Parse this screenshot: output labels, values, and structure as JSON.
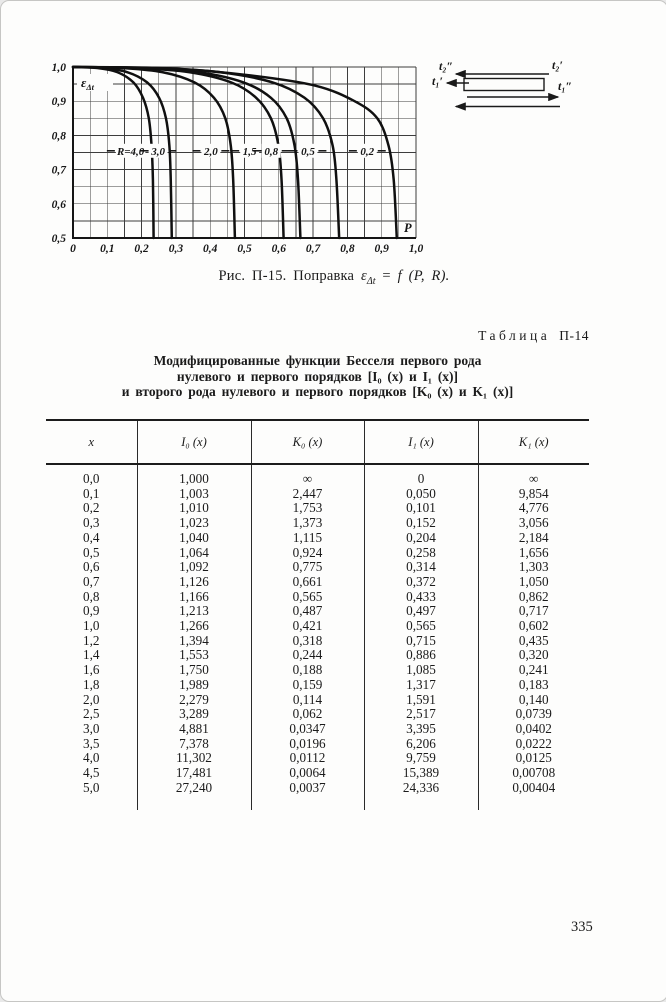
{
  "page": {
    "number": "335"
  },
  "figure": {
    "caption": {
      "prefix": "Рис. П-15. Поправка ",
      "eps": "ε",
      "eps_sub": "Δt",
      "eq": " = ",
      "func": "f",
      "args": " (P, R)."
    },
    "inset_labels": {
      "t2_out": "t₂″",
      "t2_in": "t₂′",
      "t1_in": "t₁′",
      "t1_out": "t₁″"
    },
    "chart_data": {
      "type": "line",
      "title": "",
      "xlabel": "P",
      "ylabel_base": "ε",
      "ylabel_sub": "Δt",
      "xlim": [
        0,
        1.0
      ],
      "ylim": [
        0.5,
        1.0
      ],
      "grid": true,
      "grid_step": 0.05,
      "x_tick_values": [
        0,
        0.1,
        0.2,
        0.3,
        0.4,
        0.5,
        0.6,
        0.7,
        0.8,
        0.9,
        1.0
      ],
      "x_tick_labels": [
        "0",
        "0,1",
        "0,2",
        "0,3",
        "0,4",
        "0,5",
        "0,6",
        "0,7",
        "0,8",
        "0,9",
        "1,0"
      ],
      "y_tick_values": [
        0.5,
        0.6,
        0.7,
        0.8,
        0.9,
        1.0
      ],
      "y_tick_labels": [
        "0,5",
        "0,6",
        "0,7",
        "0,8",
        "0,9",
        "1,0"
      ],
      "label_eps": 0.755,
      "series": [
        {
          "name": "R=4,0",
          "label_p": 0.168,
          "points": [
            [
              0,
              1.0
            ],
            [
              0.071,
              0.997
            ],
            [
              0.129,
              0.985
            ],
            [
              0.176,
              0.955
            ],
            [
              0.204,
              0.91
            ],
            [
              0.221,
              0.85
            ],
            [
              0.229,
              0.77
            ],
            [
              0.233,
              0.67
            ],
            [
              0.235,
              0.5
            ]
          ]
        },
        {
          "name": "3,0",
          "label_p": 0.248,
          "points": [
            [
              0,
              1.0
            ],
            [
              0.086,
              0.997
            ],
            [
              0.158,
              0.985
            ],
            [
              0.216,
              0.955
            ],
            [
              0.251,
              0.91
            ],
            [
              0.271,
              0.85
            ],
            [
              0.281,
              0.77
            ],
            [
              0.285,
              0.67
            ],
            [
              0.288,
              0.5
            ]
          ]
        },
        {
          "name": "2,0",
          "label_p": 0.402,
          "points": [
            [
              0,
              1.0
            ],
            [
              0.142,
              0.997
            ],
            [
              0.26,
              0.985
            ],
            [
              0.354,
              0.955
            ],
            [
              0.411,
              0.91
            ],
            [
              0.444,
              0.85
            ],
            [
              0.46,
              0.77
            ],
            [
              0.467,
              0.67
            ],
            [
              0.472,
              0.5
            ]
          ]
        },
        {
          "name": "1,5",
          "label_p": 0.515,
          "points": [
            [
              0,
              1.0
            ],
            [
              0.184,
              0.997
            ],
            [
              0.338,
              0.985
            ],
            [
              0.461,
              0.955
            ],
            [
              0.534,
              0.91
            ],
            [
              0.577,
              0.85
            ],
            [
              0.599,
              0.77
            ],
            [
              0.608,
              0.67
            ],
            [
              0.614,
              0.5
            ]
          ]
        },
        {
          "name": "0,8",
          "label_p": 0.578,
          "points": [
            [
              0,
              1.0
            ],
            [
              0.199,
              0.997
            ],
            [
              0.365,
              0.985
            ],
            [
              0.497,
              0.955
            ],
            [
              0.577,
              0.91
            ],
            [
              0.623,
              0.85
            ],
            [
              0.646,
              0.77
            ],
            [
              0.656,
              0.67
            ],
            [
              0.663,
              0.5
            ]
          ]
        },
        {
          "name": "0,5",
          "label_p": 0.685,
          "points": [
            [
              0,
              1.0
            ],
            [
              0.233,
              0.997
            ],
            [
              0.427,
              0.985
            ],
            [
              0.582,
              0.955
            ],
            [
              0.675,
              0.91
            ],
            [
              0.729,
              0.85
            ],
            [
              0.757,
              0.77
            ],
            [
              0.768,
              0.67
            ],
            [
              0.776,
              0.5
            ]
          ]
        },
        {
          "name": "0,2",
          "label_p": 0.858,
          "points": [
            [
              0,
              1.0
            ],
            [
              0.283,
              0.996
            ],
            [
              0.519,
              0.975
            ],
            [
              0.708,
              0.945
            ],
            [
              0.821,
              0.9
            ],
            [
              0.887,
              0.85
            ],
            [
              0.92,
              0.77
            ],
            [
              0.935,
              0.67
            ],
            [
              0.944,
              0.5
            ]
          ]
        }
      ]
    }
  },
  "table": {
    "label_word": "Таблица",
    "label_number": "П-14",
    "title_lines": [
      "Модифицированные функции Бесселя первого рода",
      "нулевого и первого порядков [I₀ (x) и I₁ (x)]",
      "и второго рода нулевого и первого порядков [K₀ (x) и K₁ (x)]"
    ],
    "columns": [
      "x",
      "I₀ (x)",
      "K₀ (x)",
      "I₁ (x)",
      "K₁ (x)"
    ],
    "rows": [
      [
        "0,0",
        "1,000",
        "∞",
        "0",
        "∞"
      ],
      [
        "0,1",
        "1,003",
        "2,447",
        "0,050",
        "9,854"
      ],
      [
        "0,2",
        "1,010",
        "1,753",
        "0,101",
        "4,776"
      ],
      [
        "0,3",
        "1,023",
        "1,373",
        "0,152",
        "3,056"
      ],
      [
        "0,4",
        "1,040",
        "1,115",
        "0,204",
        "2,184"
      ],
      [
        "0,5",
        "1,064",
        "0,924",
        "0,258",
        "1,656"
      ],
      [
        "0,6",
        "1,092",
        "0,775",
        "0,314",
        "1,303"
      ],
      [
        "0,7",
        "1,126",
        "0,661",
        "0,372",
        "1,050"
      ],
      [
        "0,8",
        "1,166",
        "0,565",
        "0,433",
        "0,862"
      ],
      [
        "0,9",
        "1,213",
        "0,487",
        "0,497",
        "0,717"
      ],
      [
        "1,0",
        "1,266",
        "0,421",
        "0,565",
        "0,602"
      ],
      [
        "1,2",
        "1,394",
        "0,318",
        "0,715",
        "0,435"
      ],
      [
        "1,4",
        "1,553",
        "0,244",
        "0,886",
        "0,320"
      ],
      [
        "1,6",
        "1,750",
        "0,188",
        "1,085",
        "0,241"
      ],
      [
        "1,8",
        "1,989",
        "0,159",
        "1,317",
        "0,183"
      ],
      [
        "2,0",
        "2,279",
        "0,114",
        "1,591",
        "0,140"
      ],
      [
        "2,5",
        "3,289",
        "0,062",
        "2,517",
        "0,0739"
      ],
      [
        "3,0",
        "4,881",
        "0,0347",
        "3,395",
        "0,0402"
      ],
      [
        "3,5",
        "7,378",
        "0,0196",
        "6,206",
        "0,0222"
      ],
      [
        "4,0",
        "11,302",
        "0,0112",
        "9,759",
        "0,0125"
      ],
      [
        "4,5",
        "17,481",
        "0,0064",
        "15,389",
        "0,00708"
      ],
      [
        "5,0",
        "27,240",
        "0,0037",
        "24,336",
        "0,00404"
      ]
    ]
  }
}
